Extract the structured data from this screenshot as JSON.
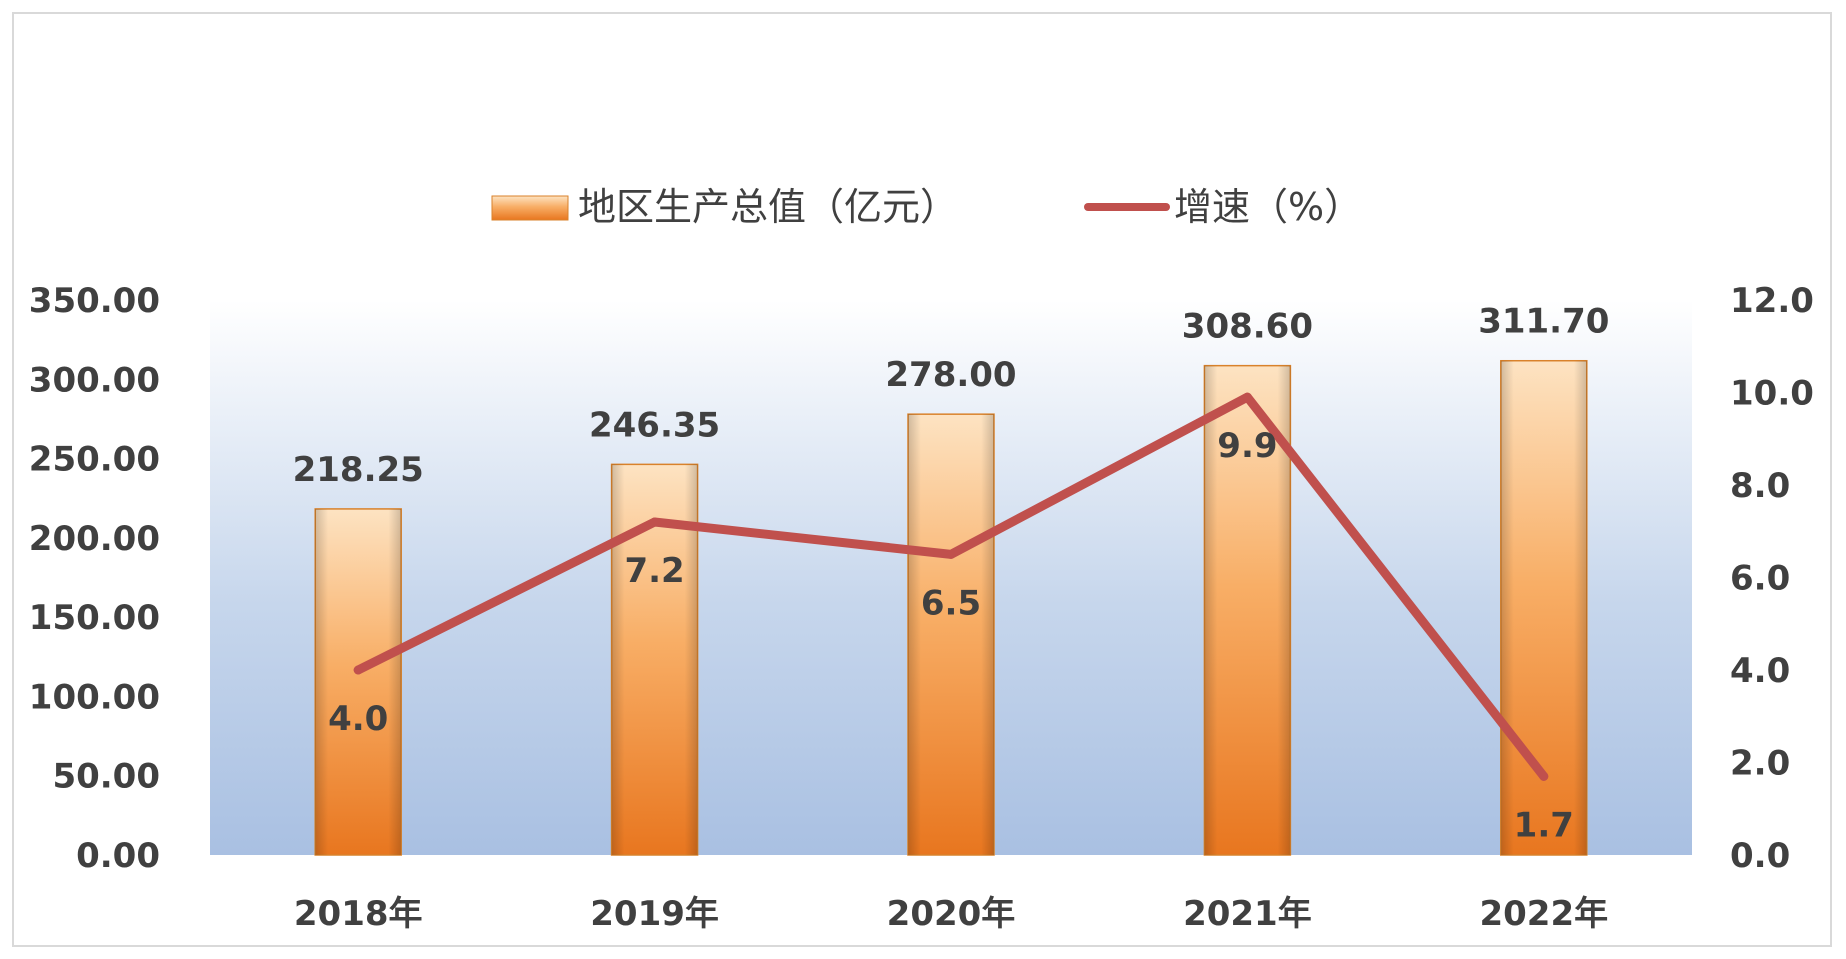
{
  "chart_data": {
    "type": "bar",
    "title": "",
    "categories": [
      "2018年",
      "2019年",
      "2020年",
      "2021年",
      "2022年"
    ],
    "series": [
      {
        "name": "地区生产总值（亿元）",
        "type": "bar",
        "axis": "left",
        "values": [
          218.25,
          246.35,
          278.0,
          308.6,
          311.7
        ],
        "labels": [
          "218.25",
          "246.35",
          "278.00",
          "308.60",
          "311.70"
        ],
        "color": "#f39a3e"
      },
      {
        "name": "增速（%）",
        "type": "line",
        "axis": "right",
        "values": [
          4.0,
          7.2,
          6.5,
          9.9,
          1.7
        ],
        "labels": [
          "4.0",
          "7.2",
          "6.5",
          "9.9",
          "1.7"
        ],
        "color": "#c0504d"
      }
    ],
    "y_left": {
      "min": 0,
      "max": 350,
      "step": 50,
      "tick_labels": [
        "0.00",
        "50.00",
        "100.00",
        "150.00",
        "200.00",
        "250.00",
        "300.00",
        "350.00"
      ]
    },
    "y_right": {
      "min": 0,
      "max": 12,
      "step": 2,
      "tick_labels": [
        "0.0",
        "2.0",
        "4.0",
        "6.0",
        "8.0",
        "10.0",
        "12.0"
      ]
    },
    "legend_position": "top",
    "grid": false
  }
}
